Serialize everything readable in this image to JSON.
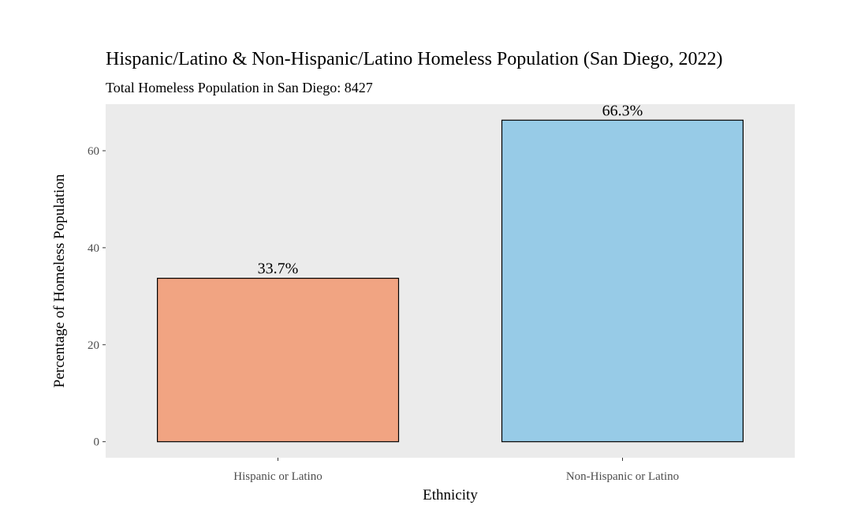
{
  "chart_data": {
    "type": "bar",
    "title": "Hispanic/Latino & Non-Hispanic/Latino Homeless Population (San Diego, 2022)",
    "subtitle": "Total Homeless Population in San Diego: 8427",
    "xlabel": "Ethnicity",
    "ylabel": "Percentage of Homeless Population",
    "categories": [
      "Hispanic or Latino",
      "Non-Hispanic or Latino"
    ],
    "values": [
      33.7,
      66.3
    ],
    "value_labels": [
      "33.7%",
      "66.3%"
    ],
    "bar_colors": [
      "#f1a482",
      "#97cbe7"
    ],
    "bar_outline": "#000000",
    "panel_background": "#ebebeb",
    "yticks": [
      0,
      20,
      40,
      60
    ],
    "ytick_labels": [
      "0",
      "20",
      "40",
      "60"
    ],
    "ylim": [
      -3.3,
      69.6
    ],
    "grid": false,
    "legend": "none"
  }
}
